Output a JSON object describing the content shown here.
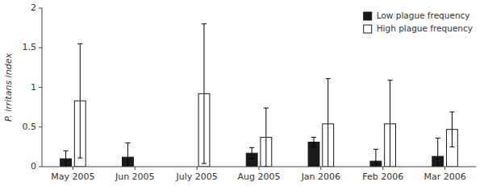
{
  "chart_data": {
    "type": "bar",
    "categories": [
      "May 2005",
      "Jun 2005",
      "July 2005",
      "Aug 2005",
      "Jan 2006",
      "Feb 2006",
      "Mar 2006"
    ],
    "series": [
      {
        "name": "Low plague frequency",
        "color": "#1a1a1a",
        "values": [
          0.1,
          0.12,
          null,
          0.17,
          0.31,
          0.07,
          0.13
        ],
        "errors": [
          0.1,
          0.18,
          null,
          0.07,
          0.06,
          0.15,
          0.23
        ]
      },
      {
        "name": "High plague frequency",
        "color": "#ffffff",
        "values": [
          0.83,
          null,
          0.92,
          0.37,
          0.54,
          0.54,
          0.47
        ],
        "errors": [
          0.72,
          null,
          0.88,
          0.37,
          0.57,
          0.55,
          0.22
        ]
      }
    ],
    "ylabel": "P. irritans index",
    "ylim": [
      0,
      2.0
    ],
    "yticks": [
      0,
      0.5,
      1,
      1.5,
      2
    ],
    "grid": false,
    "legend": "upper right"
  }
}
